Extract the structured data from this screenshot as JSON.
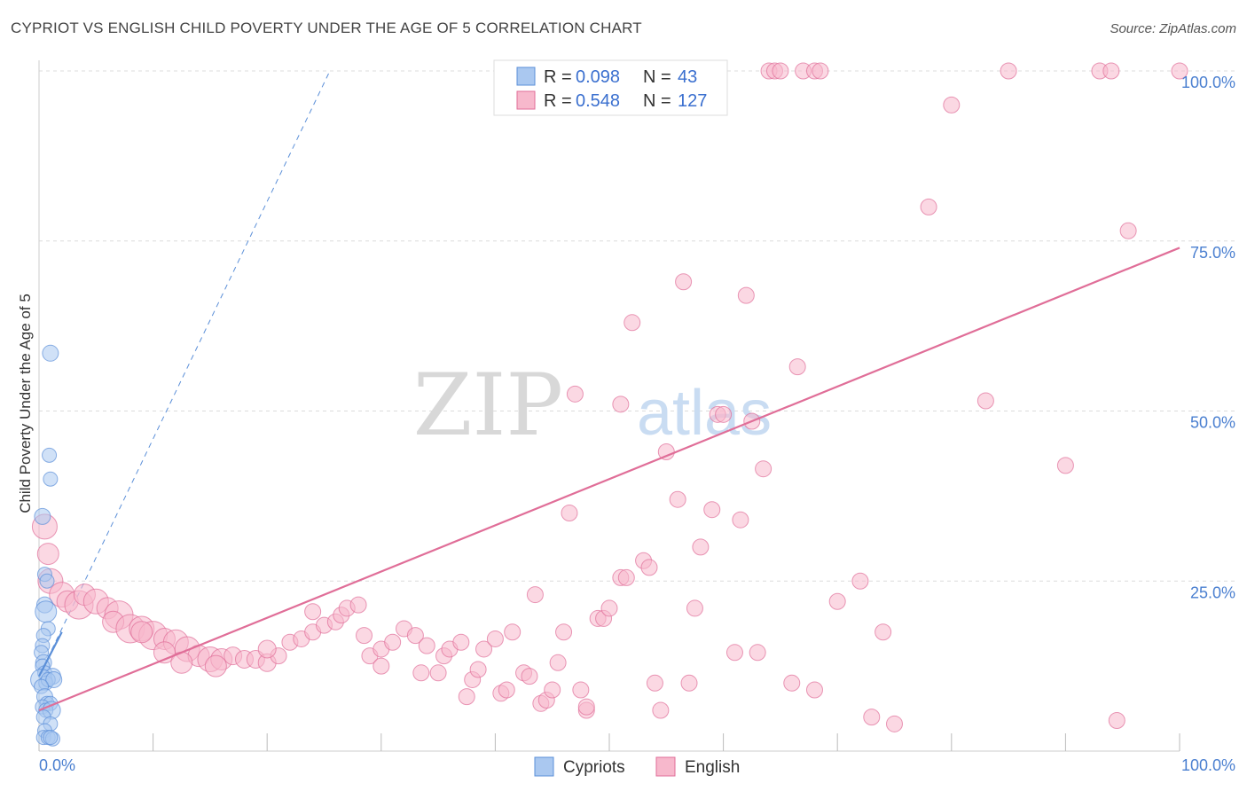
{
  "title": "CYPRIOT VS ENGLISH CHILD POVERTY UNDER THE AGE OF 5 CORRELATION CHART",
  "source": "Source: ZipAtlas.com",
  "watermark": {
    "zip": "ZIP",
    "atlas": "atlas"
  },
  "legend": {
    "rows": [
      {
        "r_label": "R =",
        "r_value": "0.098",
        "n_label": "N =",
        "n_value": "43",
        "color": "#aac8f0",
        "stroke": "#5b8fd8"
      },
      {
        "r_label": "R =",
        "r_value": "0.548",
        "n_label": "N =",
        "n_value": "127",
        "color": "#f7b8cc",
        "stroke": "#e06e98"
      }
    ]
  },
  "bottom_legend": [
    {
      "label": "Cypriots",
      "color": "#aac8f0",
      "stroke": "#5b8fd8"
    },
    {
      "label": "English",
      "color": "#f7b8cc",
      "stroke": "#e06e98"
    }
  ],
  "chart_data": {
    "type": "scatter",
    "xlabel": "",
    "ylabel": "Child Poverty Under the Age of 5",
    "xlim": [
      0,
      100
    ],
    "ylim": [
      0,
      100
    ],
    "x_tick_labels": [
      {
        "value": 0,
        "label": "0.0%"
      },
      {
        "value": 100,
        "label": "100.0%"
      }
    ],
    "y_tick_labels": [
      {
        "value": 25,
        "label": "25.0%"
      },
      {
        "value": 50,
        "label": "50.0%"
      },
      {
        "value": 75,
        "label": "75.0%"
      },
      {
        "value": 100,
        "label": "100.0%"
      }
    ],
    "grid": "horizontal dashed",
    "series": [
      {
        "name": "Cypriots",
        "color": "#5b8fd8",
        "fill": "#aac8f0",
        "points": [
          [
            1.0,
            58.5,
            9
          ],
          [
            0.9,
            43.5,
            8
          ],
          [
            1.0,
            40.0,
            8
          ],
          [
            0.3,
            34.5,
            9
          ],
          [
            0.5,
            26.0,
            8
          ],
          [
            0.7,
            25.0,
            8
          ],
          [
            0.5,
            21.5,
            9
          ],
          [
            0.6,
            20.5,
            12
          ],
          [
            0.8,
            18.0,
            8
          ],
          [
            0.4,
            17.0,
            8
          ],
          [
            0.3,
            15.5,
            8
          ],
          [
            0.2,
            14.5,
            8
          ],
          [
            0.4,
            13.0,
            9
          ],
          [
            0.3,
            12.5,
            8
          ],
          [
            0.5,
            11.5,
            8
          ],
          [
            1.2,
            11.0,
            9
          ],
          [
            0.2,
            10.5,
            12
          ],
          [
            0.6,
            10.0,
            8
          ],
          [
            0.8,
            10.5,
            8
          ],
          [
            1.3,
            10.5,
            9
          ],
          [
            0.2,
            9.5,
            8
          ],
          [
            0.5,
            8.0,
            9
          ],
          [
            0.7,
            7.0,
            8
          ],
          [
            1.0,
            7.0,
            8
          ],
          [
            0.3,
            6.5,
            8
          ],
          [
            0.6,
            6.0,
            8
          ],
          [
            1.1,
            6.0,
            10
          ],
          [
            0.4,
            5.0,
            8
          ],
          [
            1.0,
            4.0,
            8
          ],
          [
            0.5,
            3.0,
            8
          ],
          [
            0.4,
            2.0,
            8
          ],
          [
            0.8,
            2.0,
            8
          ],
          [
            1.2,
            1.8,
            8
          ],
          [
            1.0,
            2.0,
            8
          ]
        ],
        "trendline": {
          "from": [
            0,
            11.0
          ],
          "to": [
            2.0,
            17.5
          ],
          "style": "solid"
        },
        "extended_trendline": {
          "from": [
            0,
            11.0
          ],
          "to": [
            25.5,
            100
          ],
          "style": "dashed"
        }
      },
      {
        "name": "English",
        "color": "#e06e98",
        "fill": "#f7b8cc",
        "points": [
          [
            0.5,
            33.0,
            14
          ],
          [
            0.8,
            29.0,
            12
          ],
          [
            1.0,
            25.0,
            14
          ],
          [
            2.0,
            23.0,
            14
          ],
          [
            2.5,
            22.0,
            12
          ],
          [
            3.5,
            21.5,
            16
          ],
          [
            4.0,
            23.0,
            12
          ],
          [
            5.0,
            22.0,
            14
          ],
          [
            6.0,
            21.0,
            12
          ],
          [
            7.0,
            20.0,
            16
          ],
          [
            6.5,
            19.0,
            12
          ],
          [
            8.0,
            18.0,
            16
          ],
          [
            9.0,
            18.0,
            14
          ],
          [
            10.0,
            17.0,
            16
          ],
          [
            11.0,
            16.5,
            12
          ],
          [
            12.0,
            16.0,
            14
          ],
          [
            13.0,
            15.0,
            14
          ],
          [
            14.0,
            14.0,
            12
          ],
          [
            15.0,
            13.5,
            14
          ],
          [
            16.0,
            13.5,
            12
          ],
          [
            17.0,
            14.0,
            10
          ],
          [
            18.0,
            13.5,
            10
          ],
          [
            19.0,
            13.5,
            10
          ],
          [
            20.0,
            13.0,
            10
          ],
          [
            21.0,
            14.0,
            9
          ],
          [
            22.0,
            16.0,
            9
          ],
          [
            23.0,
            16.5,
            9
          ],
          [
            24.0,
            17.5,
            9
          ],
          [
            25.0,
            18.5,
            9
          ],
          [
            26.0,
            19.0,
            9
          ],
          [
            26.5,
            20.0,
            9
          ],
          [
            27.0,
            21.0,
            9
          ],
          [
            28.0,
            21.5,
            9
          ],
          [
            28.5,
            17.0,
            9
          ],
          [
            29.0,
            14.0,
            9
          ],
          [
            30.0,
            15.0,
            9
          ],
          [
            31.0,
            16.0,
            9
          ],
          [
            32.0,
            18.0,
            9
          ],
          [
            33.0,
            17.0,
            9
          ],
          [
            34.0,
            15.5,
            9
          ],
          [
            33.5,
            11.5,
            9
          ],
          [
            35.0,
            11.5,
            9
          ],
          [
            35.5,
            14.0,
            9
          ],
          [
            36.0,
            15.0,
            9
          ],
          [
            37.0,
            16.0,
            9
          ],
          [
            37.5,
            8.0,
            9
          ],
          [
            38.0,
            10.5,
            9
          ],
          [
            38.5,
            12.0,
            9
          ],
          [
            39.0,
            15.0,
            9
          ],
          [
            40.0,
            16.5,
            9
          ],
          [
            40.5,
            8.5,
            9
          ],
          [
            41.0,
            9.0,
            9
          ],
          [
            41.5,
            17.5,
            9
          ],
          [
            42.5,
            11.5,
            9
          ],
          [
            43.0,
            11.0,
            9
          ],
          [
            43.5,
            23.0,
            9
          ],
          [
            44.0,
            7.0,
            9
          ],
          [
            44.5,
            7.5,
            9
          ],
          [
            45.0,
            9.0,
            9
          ],
          [
            45.5,
            13.0,
            9
          ],
          [
            46.0,
            17.5,
            9
          ],
          [
            46.5,
            35.0,
            9
          ],
          [
            47.0,
            52.5,
            9
          ],
          [
            47.5,
            9.0,
            9
          ],
          [
            48.0,
            6.0,
            9
          ],
          [
            49.0,
            19.5,
            9
          ],
          [
            49.5,
            19.5,
            9
          ],
          [
            50.0,
            21.0,
            9
          ],
          [
            51.0,
            25.5,
            9
          ],
          [
            51.5,
            25.5,
            9
          ],
          [
            51.0,
            51.0,
            9
          ],
          [
            52.0,
            63.0,
            9
          ],
          [
            53.0,
            28.0,
            9
          ],
          [
            53.5,
            27.0,
            9
          ],
          [
            54.0,
            10.0,
            9
          ],
          [
            54.5,
            6.0,
            9
          ],
          [
            55.0,
            44.0,
            9
          ],
          [
            56.0,
            37.0,
            9
          ],
          [
            56.5,
            69.0,
            9
          ],
          [
            57.0,
            10.0,
            9
          ],
          [
            57.5,
            21.0,
            9
          ],
          [
            58.0,
            30.0,
            9
          ],
          [
            59.0,
            35.5,
            9
          ],
          [
            59.5,
            49.5,
            9
          ],
          [
            60.0,
            49.5,
            9
          ],
          [
            61.0,
            14.5,
            9
          ],
          [
            61.5,
            34.0,
            9
          ],
          [
            62.0,
            67.0,
            9
          ],
          [
            62.5,
            48.5,
            9
          ],
          [
            63.0,
            14.5,
            9
          ],
          [
            63.5,
            41.5,
            9
          ],
          [
            64.0,
            100,
            9
          ],
          [
            64.5,
            100,
            9
          ],
          [
            65.0,
            100,
            9
          ],
          [
            66.0,
            10.0,
            9
          ],
          [
            66.5,
            56.5,
            9
          ],
          [
            67.0,
            100,
            9
          ],
          [
            68.0,
            100,
            9
          ],
          [
            68.5,
            100,
            9
          ],
          [
            68.0,
            9.0,
            9
          ],
          [
            70.0,
            22.0,
            9
          ],
          [
            72.0,
            25.0,
            9
          ],
          [
            73.0,
            5.0,
            9
          ],
          [
            74.0,
            17.5,
            9
          ],
          [
            75.0,
            4.0,
            9
          ],
          [
            78.0,
            80.0,
            9
          ],
          [
            80.0,
            95.0,
            9
          ],
          [
            83.0,
            51.5,
            9
          ],
          [
            85.0,
            100,
            9
          ],
          [
            90.0,
            42.0,
            9
          ],
          [
            93.0,
            100,
            9
          ],
          [
            94.0,
            100,
            9
          ],
          [
            94.5,
            4.5,
            9
          ],
          [
            95.5,
            76.5,
            9
          ],
          [
            100.0,
            100,
            9
          ],
          [
            9.0,
            17.5,
            12
          ],
          [
            11.0,
            14.5,
            12
          ],
          [
            12.5,
            13.0,
            12
          ],
          [
            15.5,
            12.5,
            12
          ],
          [
            20.0,
            15.0,
            10
          ],
          [
            24.0,
            20.5,
            9
          ],
          [
            30.0,
            12.5,
            9
          ],
          [
            48.0,
            6.5,
            9
          ]
        ],
        "trendline": {
          "from": [
            0,
            6.0
          ],
          "to": [
            100,
            74.0
          ],
          "style": "solid"
        }
      }
    ]
  }
}
